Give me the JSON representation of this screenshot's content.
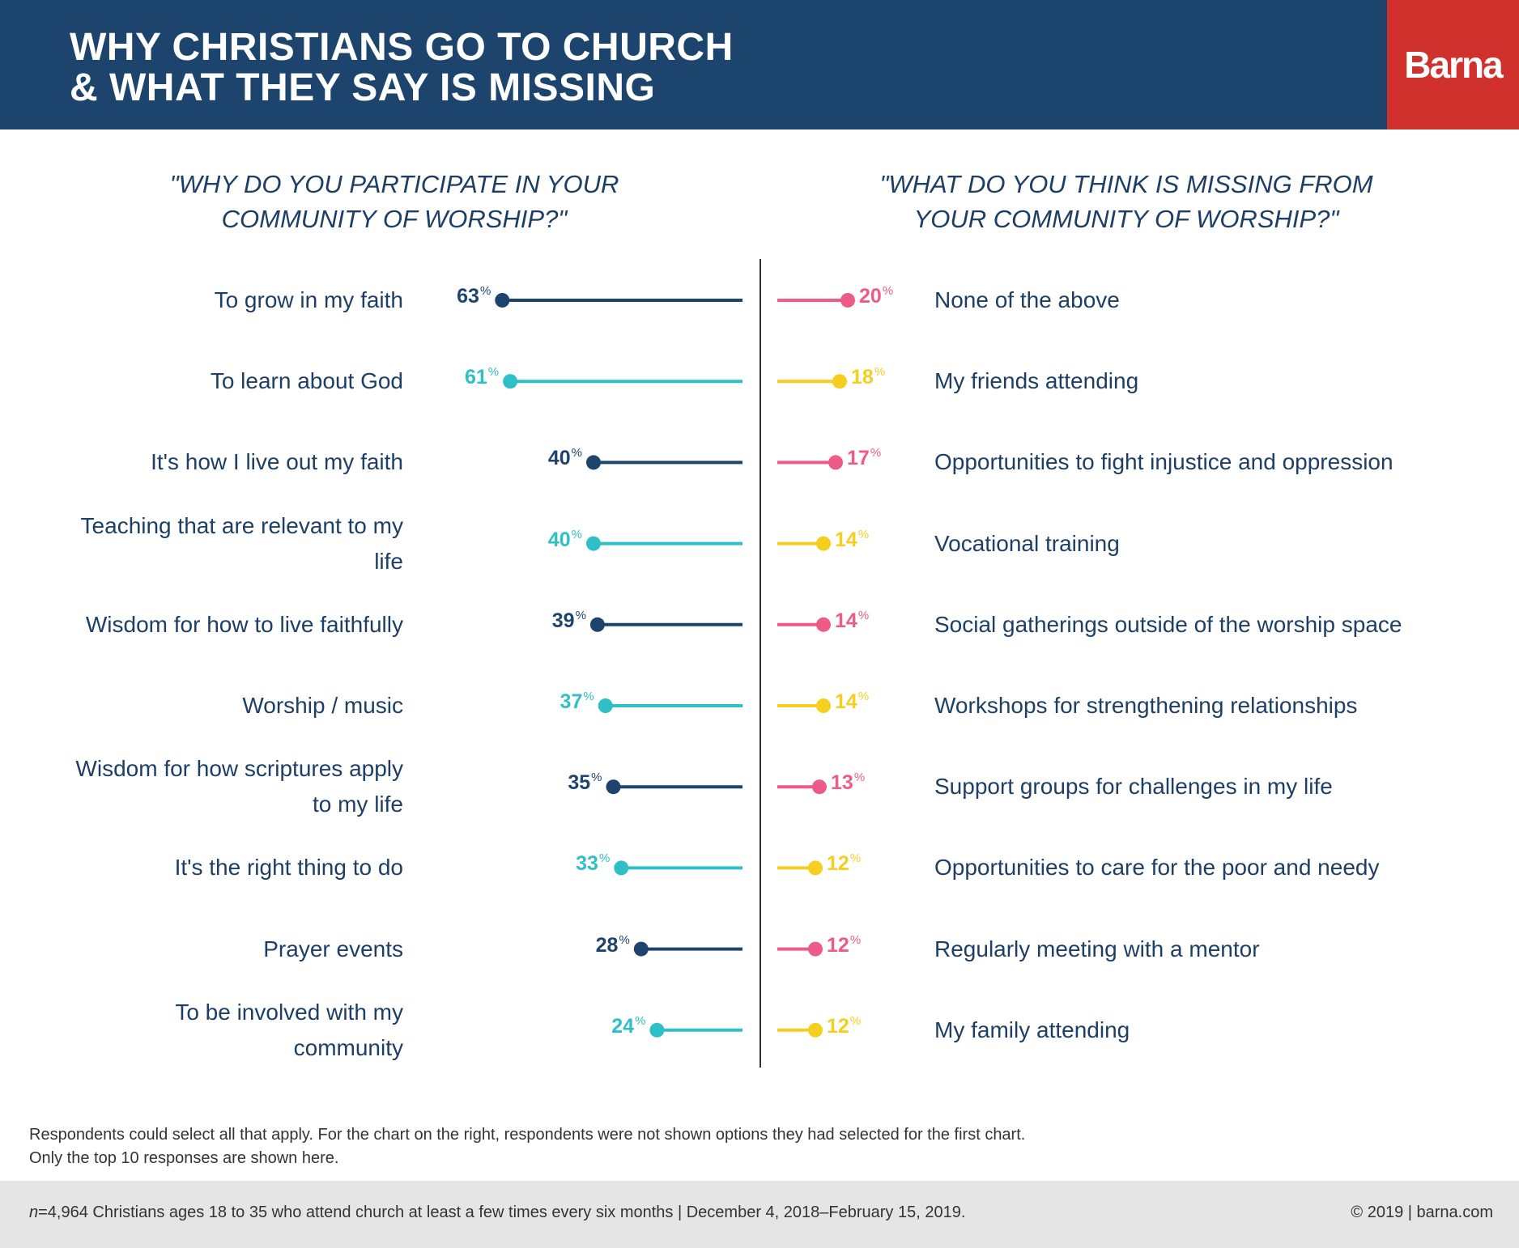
{
  "header": {
    "title_line1": "WHY CHRISTIANS GO TO CHURCH",
    "title_line2": "& WHAT THEY SAY IS MISSING",
    "logo": "Barna"
  },
  "chart_data": [
    {
      "type": "lollipop",
      "title": "\"WHY DO YOU PARTICIPATE IN YOUR COMMUNITY OF WORSHIP?\"",
      "unit": "%",
      "categories": [
        "To grow in my faith",
        "To learn about God",
        "It's how I live out my faith",
        "Teaching that are relevant to my life",
        "Wisdom for how to live faithfully",
        "Worship / music",
        "Wisdom for how scriptures apply to my life",
        "It's the right thing to do",
        "Prayer events",
        "To be involved with my community"
      ],
      "values": [
        63,
        61,
        40,
        40,
        39,
        37,
        35,
        33,
        28,
        24
      ],
      "colors": [
        "#1d446d",
        "#2fbfc6"
      ],
      "direction": "left"
    },
    {
      "type": "lollipop",
      "title": "\"WHAT DO YOU THINK IS MISSING FROM YOUR COMMUNITY OF WORSHIP?\"",
      "unit": "%",
      "categories": [
        "None of the above",
        "My friends attending",
        "Opportunities to fight injustice and oppression",
        "Vocational training",
        "Social gatherings outside of the worship space",
        "Workshops for strengthening relationships",
        "Support groups for challenges in my life",
        "Opportunities to care for the poor and needy",
        "Regularly meeting with a mentor",
        "My family attending"
      ],
      "values": [
        20,
        18,
        17,
        14,
        14,
        14,
        13,
        12,
        12,
        12
      ],
      "colors": [
        "#ee5b87",
        "#f5cf1f"
      ],
      "direction": "right"
    }
  ],
  "questions": {
    "left_line1": "\"WHY DO YOU PARTICIPATE IN YOUR",
    "left_line2": "COMMUNITY OF WORSHIP?\"",
    "right_line1": "\"WHAT DO YOU THINK IS MISSING FROM",
    "right_line2": "YOUR COMMUNITY OF WORSHIP?\""
  },
  "note": {
    "line1": "Respondents could select all that apply. For the chart on the right, respondents were not shown options they had selected for the first chart.",
    "line2": "Only the top 10 responses are shown here."
  },
  "footer": {
    "sample_n": "n",
    "sample_text": "=4,964 Christians ages 18 to 35 who attend church at least a few times every six months | December 4, 2018–February 15, 2019.",
    "copyright": "© 2019 | barna.com"
  }
}
